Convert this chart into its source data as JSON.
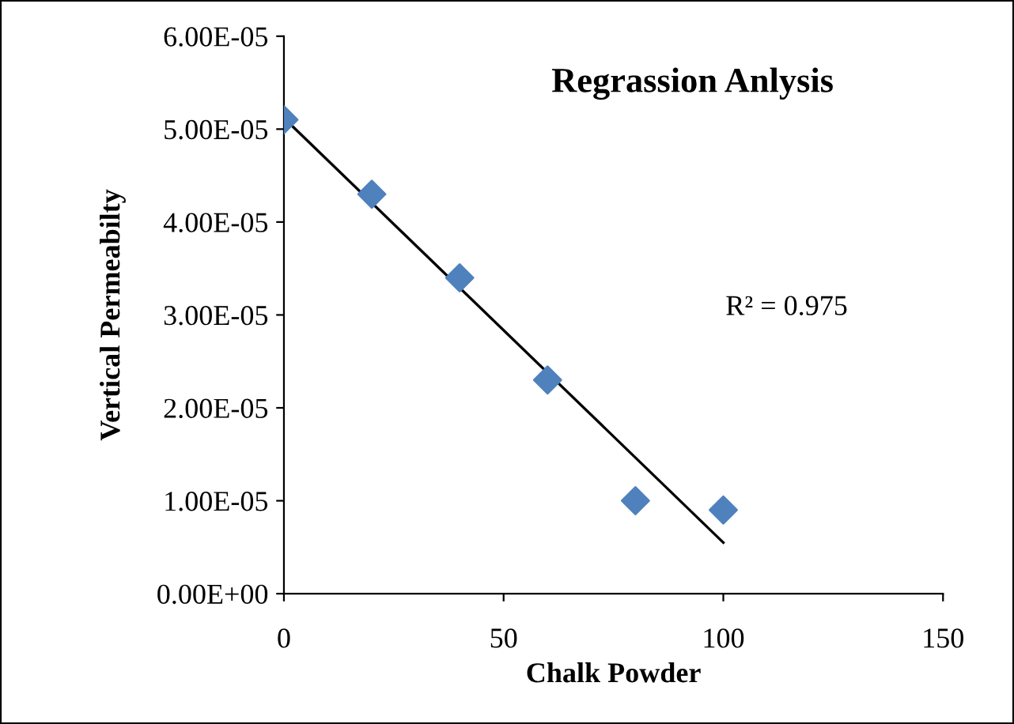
{
  "chart_data": {
    "type": "scatter",
    "title": "Regrassion Anlysis",
    "xlabel": "Chalk Powder",
    "ylabel": "Vertical Permeabilty",
    "x": [
      0,
      20,
      40,
      60,
      80,
      100
    ],
    "series": [
      {
        "color": "#4f81bd",
        "marker": "diamond",
        "values": [
          5.1e-05,
          4.3e-05,
          3.4e-05,
          2.3e-05,
          1e-05,
          9e-06
        ]
      },
      {
        "type": "line",
        "color": "#000000",
        "marker": "none",
        "x": [
          0,
          100
        ],
        "values": [
          5.12e-05,
          5.5e-06
        ]
      }
    ],
    "annotations": [
      "R² = 0.975"
    ],
    "xlim": [
      0,
      150
    ],
    "xticks": [
      0,
      50,
      100,
      150
    ],
    "ylim": [
      0,
      6e-05
    ],
    "yticks": [
      {
        "value": 0,
        "label": "0.00E+00"
      },
      {
        "value": 1e-05,
        "label": "1.00E-05"
      },
      {
        "value": 2e-05,
        "label": "2.00E-05"
      },
      {
        "value": 3e-05,
        "label": "3.00E-05"
      },
      {
        "value": 4e-05,
        "label": "4.00E-05"
      },
      {
        "value": 5e-05,
        "label": "5.00E-05"
      },
      {
        "value": 6e-05,
        "label": "6.00E-05"
      }
    ],
    "grid": false,
    "legend": false
  }
}
